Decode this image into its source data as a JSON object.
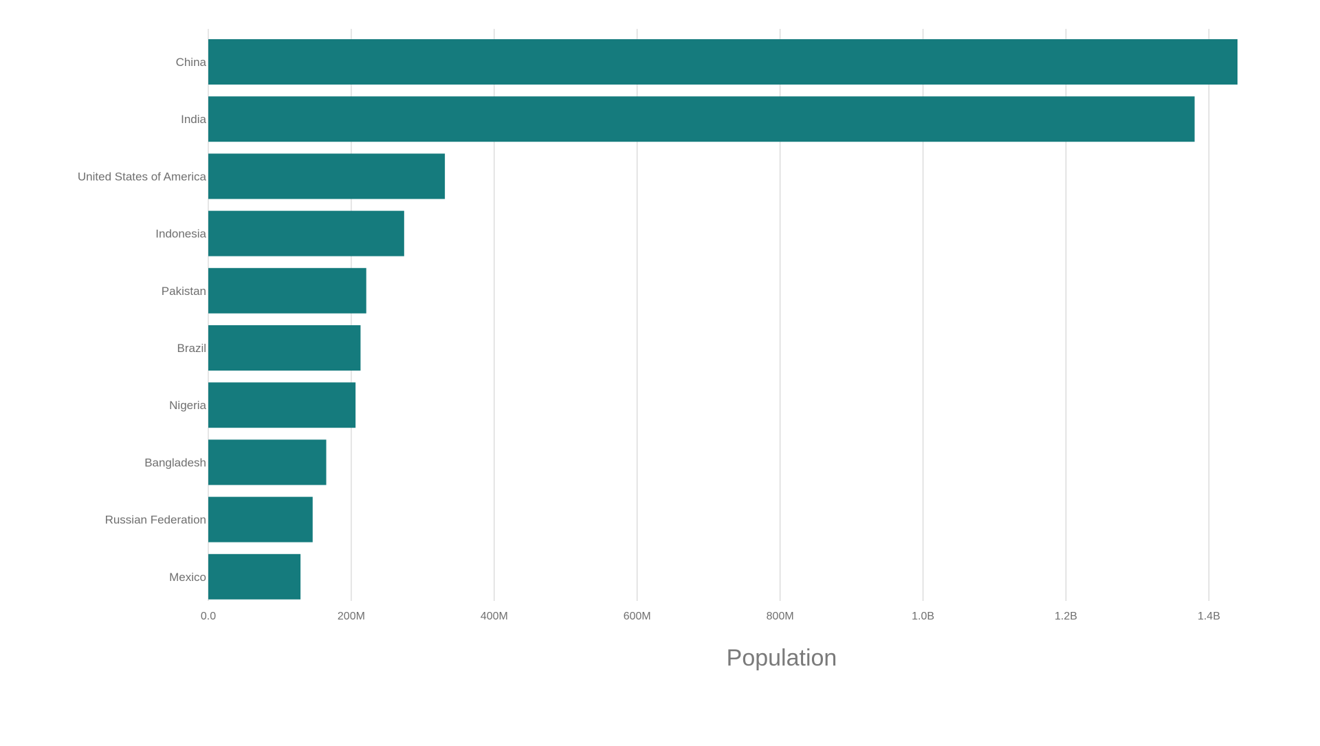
{
  "chart_data": {
    "type": "bar",
    "orientation": "horizontal",
    "categories": [
      "China",
      "India",
      "United States of America",
      "Indonesia",
      "Pakistan",
      "Brazil",
      "Nigeria",
      "Bangladesh",
      "Russian Federation",
      "Mexico"
    ],
    "values": [
      1440000000,
      1380000000,
      331000000,
      274000000,
      221000000,
      213000000,
      206000000,
      165000000,
      146000000,
      129000000
    ],
    "title": "",
    "xlabel": "Population",
    "ylabel": "",
    "xlim": [
      0,
      1440000000
    ],
    "xticks": [
      0,
      200000000,
      400000000,
      600000000,
      800000000,
      1000000000,
      1200000000,
      1400000000
    ],
    "xtick_labels": [
      "0.0",
      "200M",
      "400M",
      "600M",
      "800M",
      "1.0B",
      "1.2B",
      "1.4B"
    ],
    "grid": "vertical",
    "legend": "none",
    "bar_color": "#157b7d"
  }
}
